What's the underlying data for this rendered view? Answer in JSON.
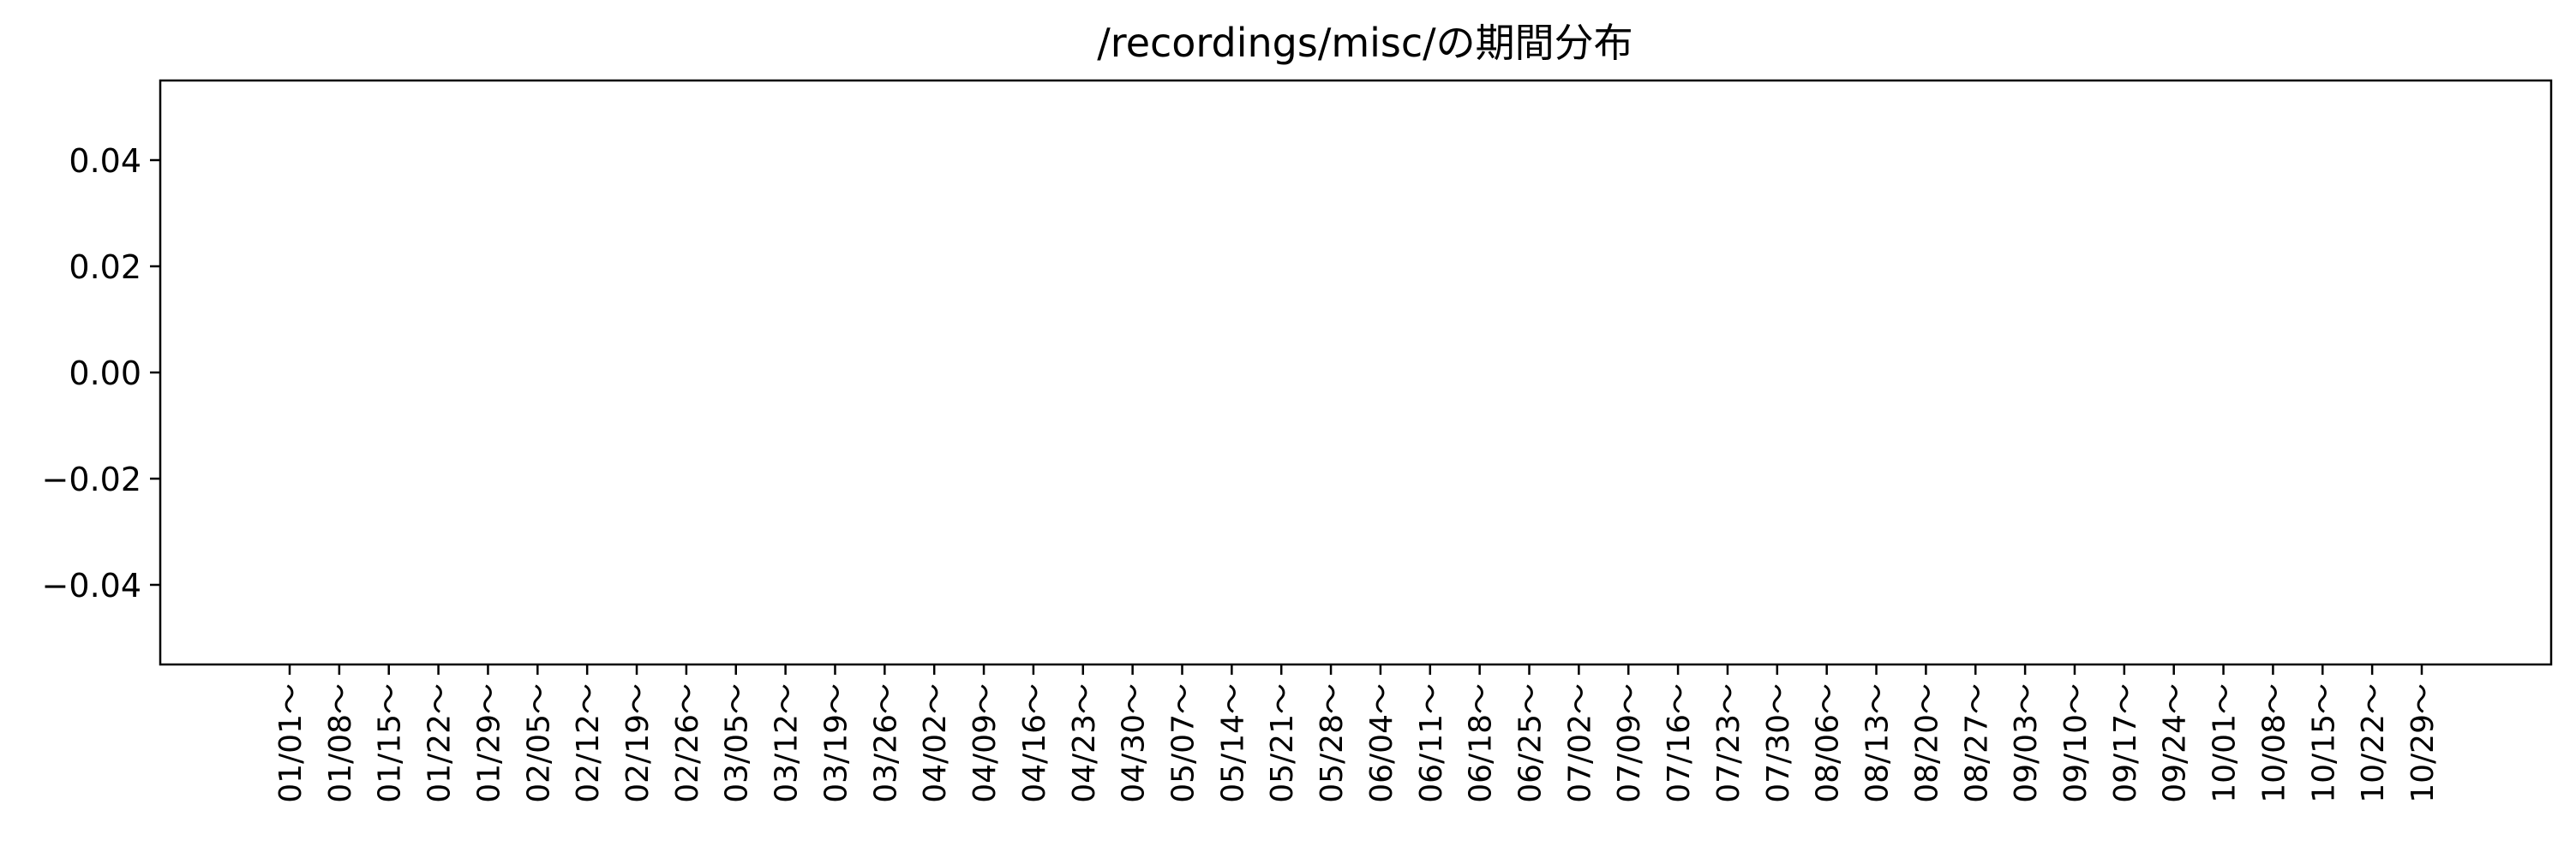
{
  "chart_data": {
    "type": "bar",
    "title": "/recordings/misc/の期間分布",
    "xlabel": "",
    "ylabel": "",
    "categories": [
      "01/01～",
      "01/08～",
      "01/15～",
      "01/22～",
      "01/29～",
      "02/05～",
      "02/12～",
      "02/19～",
      "02/26～",
      "03/05～",
      "03/12～",
      "03/19～",
      "03/26～",
      "04/02～",
      "04/09～",
      "04/16～",
      "04/23～",
      "04/30～",
      "05/07～",
      "05/14～",
      "05/21～",
      "05/28～",
      "06/04～",
      "06/11～",
      "06/18～",
      "06/25～",
      "07/02～",
      "07/09～",
      "07/16～",
      "07/23～",
      "07/30～",
      "08/06～",
      "08/13～",
      "08/20～",
      "08/27～",
      "09/03～",
      "09/10～",
      "09/17～",
      "09/24～",
      "10/01～",
      "10/08～",
      "10/15～",
      "10/22～",
      "10/29～"
    ],
    "values": [
      0,
      0,
      0,
      0,
      0,
      0,
      0,
      0,
      0,
      0,
      0,
      0,
      0,
      0,
      0,
      0,
      0,
      0,
      0,
      0,
      0,
      0,
      0,
      0,
      0,
      0,
      0,
      0,
      0,
      0,
      0,
      0,
      0,
      0,
      0,
      0,
      0,
      0,
      0,
      0,
      0,
      0,
      0,
      0
    ],
    "ylim": [
      -0.055,
      0.055
    ],
    "yticks": [
      0.04,
      0.02,
      0.0,
      -0.02,
      -0.04
    ],
    "ytick_labels": [
      "0.04",
      "0.02",
      "0.00",
      "−0.02",
      "−0.04"
    ],
    "grid": false,
    "legend": "none",
    "colors": {
      "axis": "#000000",
      "background": "#ffffff",
      "bar": "#1f77b4"
    }
  }
}
